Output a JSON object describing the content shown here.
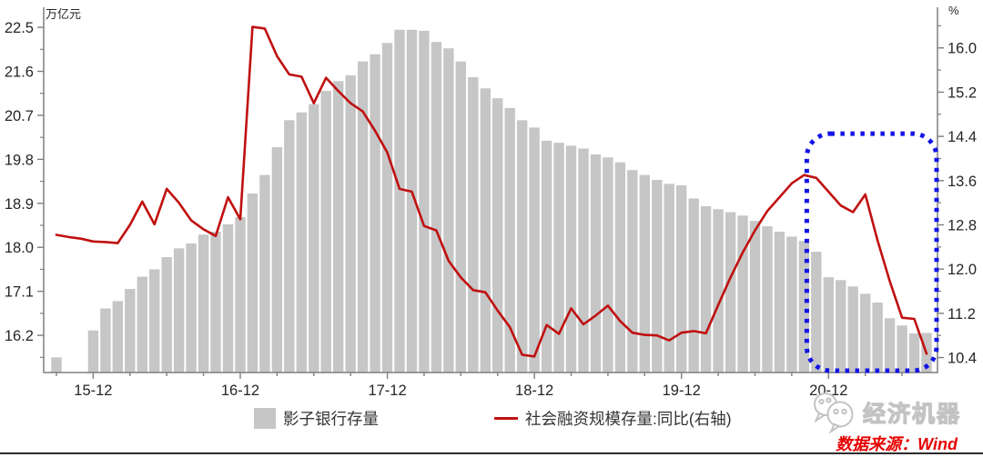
{
  "chart": {
    "source_text": "数据来源：Wind",
    "watermark_text": "经济机器"
  },
  "chart_data": {
    "type": "bar+line",
    "title": "",
    "grid": false,
    "legend_position": "bottom",
    "axis_color": "#7f7f7f",
    "text_color": "#262626",
    "x": [
      "2015-09",
      "2015-10",
      "2015-11",
      "2015-12",
      "2016-01",
      "2016-02",
      "2016-03",
      "2016-04",
      "2016-05",
      "2016-06",
      "2016-07",
      "2016-08",
      "2016-09",
      "2016-10",
      "2016-11",
      "2016-12",
      "2017-01",
      "2017-02",
      "2017-03",
      "2017-04",
      "2017-05",
      "2017-06",
      "2017-07",
      "2017-08",
      "2017-09",
      "2017-10",
      "2017-11",
      "2017-12",
      "2018-01",
      "2018-02",
      "2018-03",
      "2018-04",
      "2018-05",
      "2018-06",
      "2018-07",
      "2018-08",
      "2018-09",
      "2018-10",
      "2018-11",
      "2018-12",
      "2019-01",
      "2019-02",
      "2019-03",
      "2019-04",
      "2019-05",
      "2019-06",
      "2019-07",
      "2019-08",
      "2019-09",
      "2019-10",
      "2019-11",
      "2019-12",
      "2020-01",
      "2020-02",
      "2020-03",
      "2020-04",
      "2020-05",
      "2020-06",
      "2020-07",
      "2020-08",
      "2020-09",
      "2020-10",
      "2020-11",
      "2020-12",
      "2021-01",
      "2021-02",
      "2021-03",
      "2021-04",
      "2021-05",
      "2021-06",
      "2021-07",
      "2021-08"
    ],
    "x_tick_labels": [
      {
        "index": 3,
        "label": "15-12"
      },
      {
        "index": 15,
        "label": "16-12"
      },
      {
        "index": 27,
        "label": "17-12"
      },
      {
        "index": 39,
        "label": "18-12"
      },
      {
        "index": 51,
        "label": "19-12"
      },
      {
        "index": 63,
        "label": "20-12"
      }
    ],
    "series": [
      {
        "name": "影子银行存量",
        "type": "bar",
        "axis": "left",
        "unit": "万亿元",
        "color": "#c6c6c6",
        "values": [
          15.75,
          null,
          null,
          16.3,
          16.75,
          16.9,
          17.15,
          17.4,
          17.55,
          17.8,
          17.98,
          18.08,
          18.26,
          18.32,
          18.47,
          18.62,
          19.1,
          19.48,
          20.05,
          20.6,
          20.76,
          20.93,
          21.2,
          21.4,
          21.52,
          21.8,
          21.95,
          22.18,
          22.45,
          22.45,
          22.43,
          22.2,
          22.07,
          21.8,
          21.48,
          21.25,
          21.05,
          20.85,
          20.6,
          20.45,
          20.18,
          20.14,
          20.08,
          20.02,
          19.9,
          19.84,
          19.74,
          19.58,
          19.48,
          19.38,
          19.3,
          19.27,
          19.0,
          18.84,
          18.78,
          18.72,
          18.65,
          18.54,
          18.43,
          18.32,
          18.22,
          18.13,
          17.91,
          17.39,
          17.33,
          17.2,
          17.05,
          16.87,
          16.55,
          16.4,
          16.24,
          16.25
        ]
      },
      {
        "name": "社会融资规模存量:同比(右轴)",
        "type": "line",
        "axis": "right",
        "unit": "%",
        "color": "#c01010",
        "values": [
          12.62,
          12.58,
          12.55,
          12.5,
          12.49,
          12.47,
          12.8,
          13.22,
          12.81,
          13.45,
          13.2,
          12.88,
          12.72,
          12.6,
          13.3,
          12.9,
          16.38,
          16.35,
          15.85,
          15.52,
          15.48,
          15.0,
          15.46,
          15.22,
          15.0,
          14.85,
          14.5,
          14.11,
          13.45,
          13.4,
          12.78,
          12.7,
          12.15,
          11.85,
          11.62,
          11.58,
          11.25,
          10.95,
          10.45,
          10.42,
          10.99,
          10.83,
          11.29,
          11.0,
          11.16,
          11.34,
          11.06,
          10.85,
          10.81,
          10.8,
          10.71,
          10.85,
          10.88,
          10.84,
          11.35,
          11.85,
          12.3,
          12.7,
          13.05,
          13.3,
          13.55,
          13.7,
          13.65,
          13.4,
          13.15,
          13.03,
          13.35,
          12.52,
          11.78,
          11.12,
          11.1,
          10.47
        ]
      }
    ],
    "left_axis": {
      "unit": "万亿元",
      "min": 15.44,
      "max": 22.78,
      "ticks": [
        "22.5",
        "21.6",
        "20.7",
        "19.8",
        "18.9",
        "18.0",
        "17.1",
        "16.2"
      ],
      "minor_step": 0.45
    },
    "right_axis": {
      "unit": "%",
      "min": 10.13,
      "max": 16.62,
      "ticks": [
        "16.0",
        "15.2",
        "14.4",
        "13.6",
        "12.8",
        "12.0",
        "11.2",
        "10.4"
      ],
      "minor_step": 0.4
    },
    "highlight_box": {
      "from_month": "2020-10",
      "to_month": "2021-08",
      "right_axis_top": 14.45,
      "color": "#1414e6",
      "style": "dotted"
    }
  }
}
